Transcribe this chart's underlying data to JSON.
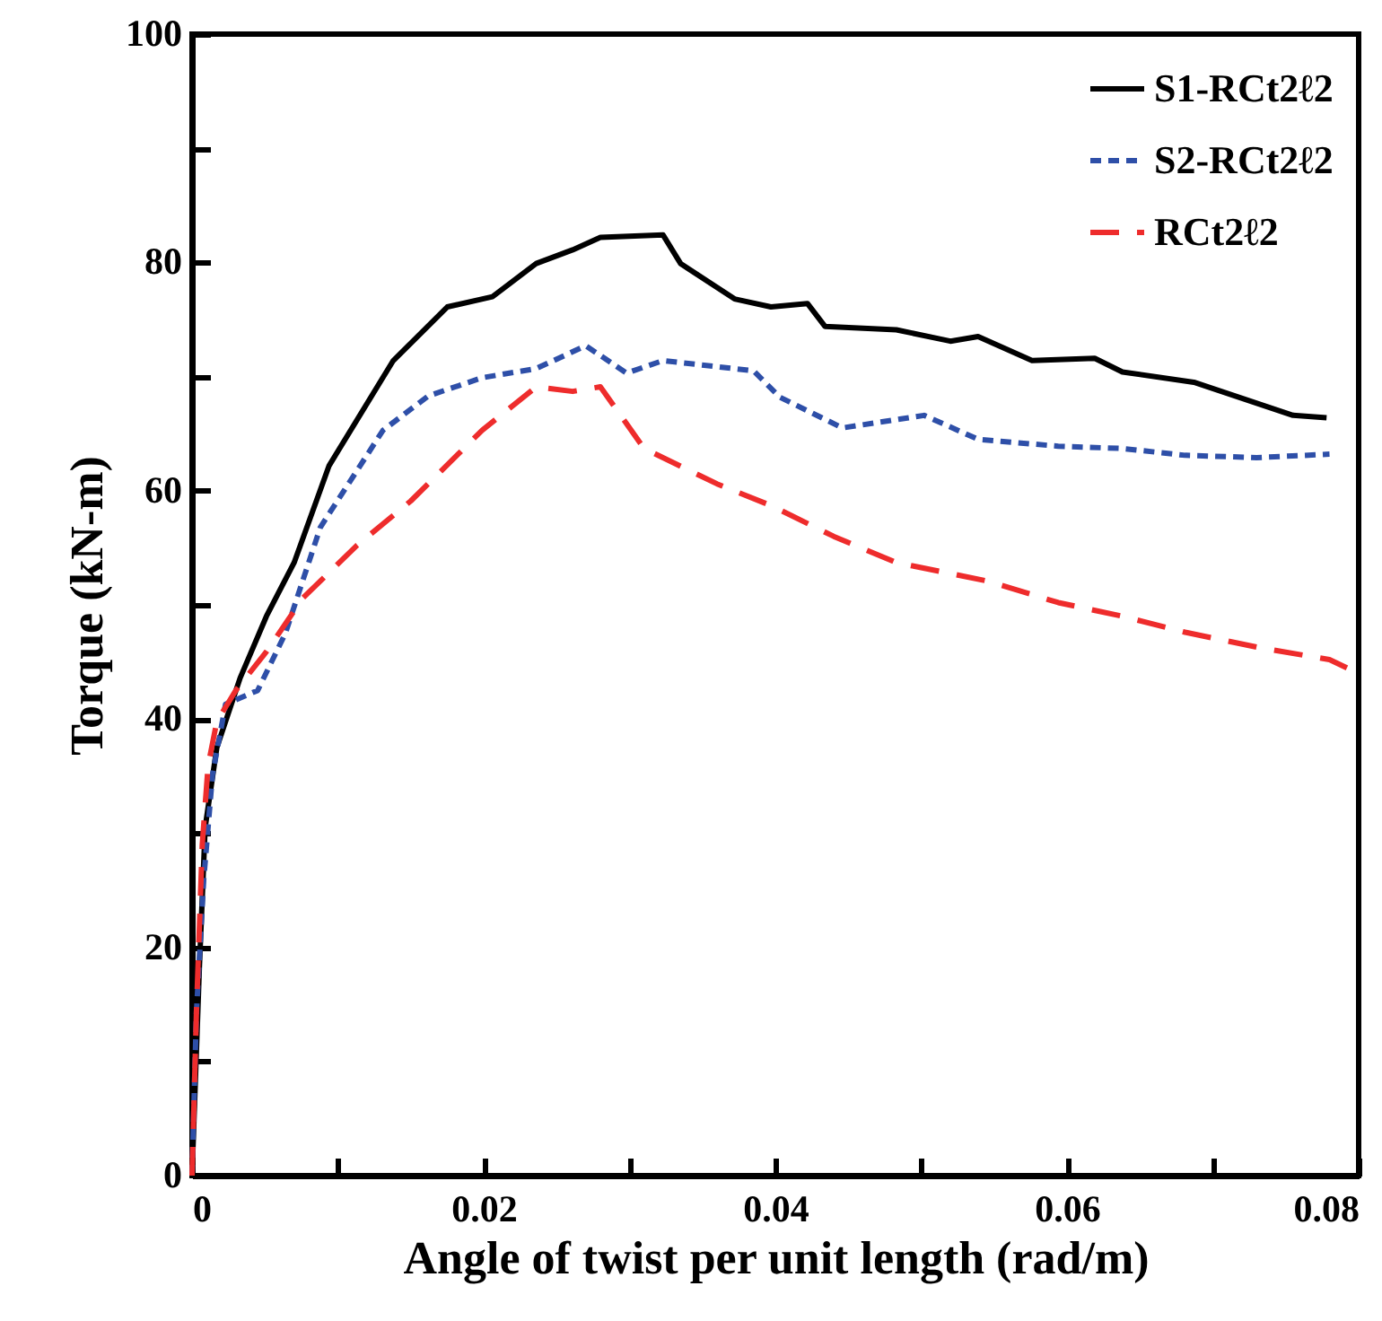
{
  "chart_data": {
    "type": "line",
    "xlabel": "Angle of twist per unit length (rad/m)",
    "ylabel": "Torque (kN-m)",
    "xlim": [
      0,
      0.08
    ],
    "ylim": [
      0,
      100
    ],
    "xticks": [
      0,
      {
        "value": 0.01,
        "label": null
      },
      0.02,
      {
        "value": 0.03,
        "label": null
      },
      0.04,
      {
        "value": 0.05,
        "label": null
      },
      0.06,
      {
        "value": 0.07,
        "label": null
      },
      0.08
    ],
    "yticks": [
      0,
      {
        "value": 10,
        "label": null
      },
      20,
      {
        "value": 30,
        "label": null
      },
      40,
      {
        "value": 50,
        "label": null
      },
      60,
      {
        "value": 70,
        "label": null
      },
      80,
      {
        "value": 90,
        "label": null
      },
      100
    ],
    "grid": false,
    "legend": "top right",
    "marker": "none",
    "series": [
      {
        "name": "S1-RCt2ℓ2",
        "color": "#000000",
        "line_style": "solid",
        "x": [
          0,
          0.0005,
          0.0009,
          0.0017,
          0.0033,
          0.0051,
          0.007,
          0.0094,
          0.0138,
          0.0175,
          0.0206,
          0.0236,
          0.0261,
          0.028,
          0.0323,
          0.0335,
          0.0372,
          0.0397,
          0.0422,
          0.0434,
          0.0483,
          0.052,
          0.0539,
          0.0576,
          0.0619,
          0.0638,
          0.0687,
          0.0755,
          0.0778
        ],
        "values": [
          0,
          18.1,
          30.5,
          37.5,
          43.6,
          49,
          53.7,
          62.2,
          71.4,
          76.1,
          77,
          79.9,
          81.1,
          82.2,
          82.4,
          79.9,
          76.8,
          76.1,
          76.4,
          74.4,
          74.1,
          73.1,
          73.5,
          71.4,
          71.6,
          70.4,
          69.5,
          66.6,
          66.4
        ]
      },
      {
        "name": "S2-RCt2ℓ2",
        "color": "#2e4fa8",
        "line_style": "dotted",
        "x": [
          0,
          0.0003,
          0.0008,
          0.0014,
          0.0023,
          0.0045,
          0.0064,
          0.0088,
          0.0131,
          0.0162,
          0.0199,
          0.0236,
          0.027,
          0.0298,
          0.0323,
          0.0385,
          0.0403,
          0.0446,
          0.0502,
          0.0539,
          0.0594,
          0.0638,
          0.0681,
          0.073,
          0.078
        ],
        "values": [
          0,
          14.3,
          25.9,
          35.1,
          41.3,
          42.5,
          47.5,
          56.8,
          65.3,
          68.3,
          69.9,
          70.7,
          72.7,
          70.3,
          71.4,
          70.5,
          68.2,
          65.5,
          66.6,
          64.5,
          63.9,
          63.7,
          63.1,
          62.9,
          63.2
        ]
      },
      {
        "name": "RCt2ℓ2",
        "color": "#ee2c2c",
        "line_style": "dashed",
        "x": [
          0,
          0.0003,
          0.0007,
          0.0011,
          0.0017,
          0.003,
          0.0051,
          0.0076,
          0.0113,
          0.015,
          0.0199,
          0.0236,
          0.0261,
          0.028,
          0.031,
          0.036,
          0.0397,
          0.044,
          0.0483,
          0.0545,
          0.0594,
          0.0638,
          0.0681,
          0.073,
          0.078,
          0.08
        ],
        "values": [
          0,
          14.3,
          29,
          35.9,
          39.8,
          42.5,
          45.9,
          50.6,
          55.2,
          59.1,
          65.3,
          69.1,
          68.7,
          69.1,
          63.7,
          60.6,
          58.7,
          56,
          53.7,
          52.1,
          50.2,
          49,
          47.6,
          46.3,
          45.2,
          44
        ]
      }
    ]
  }
}
